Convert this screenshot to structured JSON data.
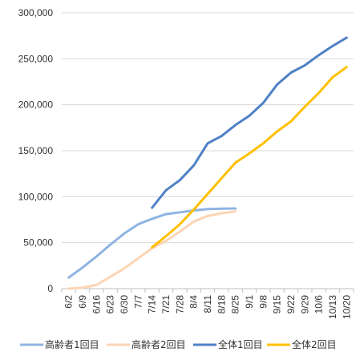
{
  "chart_data": {
    "type": "line",
    "categories": [
      "6/2",
      "6/9",
      "6/16",
      "6/23",
      "6/30",
      "7/7",
      "7/14",
      "7/21",
      "7/28",
      "8/4",
      "8/11",
      "8/18",
      "8/25",
      "9/1",
      "9/8",
      "9/15",
      "9/22",
      "9/29",
      "10/6",
      "10/13",
      "10/20"
    ],
    "ylim": [
      0,
      300000
    ],
    "yticks": [
      0,
      50000,
      100000,
      150000,
      200000,
      250000,
      300000
    ],
    "ytick_labels": [
      "0",
      "50,000",
      "100,000",
      "150,000",
      "200,000",
      "250,000",
      "300,000"
    ],
    "grid": true,
    "legend_position": "bottom",
    "series": [
      {
        "name": "高齢者1回目",
        "color": "#8fb4e3",
        "values": [
          12000,
          23000,
          35000,
          48000,
          60000,
          70000,
          76000,
          81000,
          83000,
          85000,
          86500,
          87000,
          87200,
          null,
          null,
          null,
          null,
          null,
          null,
          null,
          null
        ]
      },
      {
        "name": "高齢者2回目",
        "color": "#fcd5b5",
        "values": [
          0,
          1000,
          4000,
          13000,
          22000,
          33000,
          44000,
          52000,
          62000,
          73000,
          79000,
          82000,
          84000,
          null,
          null,
          null,
          null,
          null,
          null,
          null,
          null
        ]
      },
      {
        "name": "全体1回目",
        "color": "#4f81c6",
        "values": [
          null,
          null,
          null,
          null,
          null,
          null,
          88000,
          107000,
          118000,
          134000,
          158000,
          166000,
          178000,
          188000,
          202000,
          222000,
          235000,
          243000,
          254000,
          264000,
          273000
        ]
      },
      {
        "name": "全体2回目",
        "color": "#ffc000",
        "values": [
          null,
          null,
          null,
          null,
          null,
          null,
          45000,
          57000,
          70000,
          86000,
          103000,
          120000,
          137000,
          147000,
          158000,
          171000,
          182000,
          198000,
          213000,
          230000,
          241000
        ]
      }
    ]
  }
}
